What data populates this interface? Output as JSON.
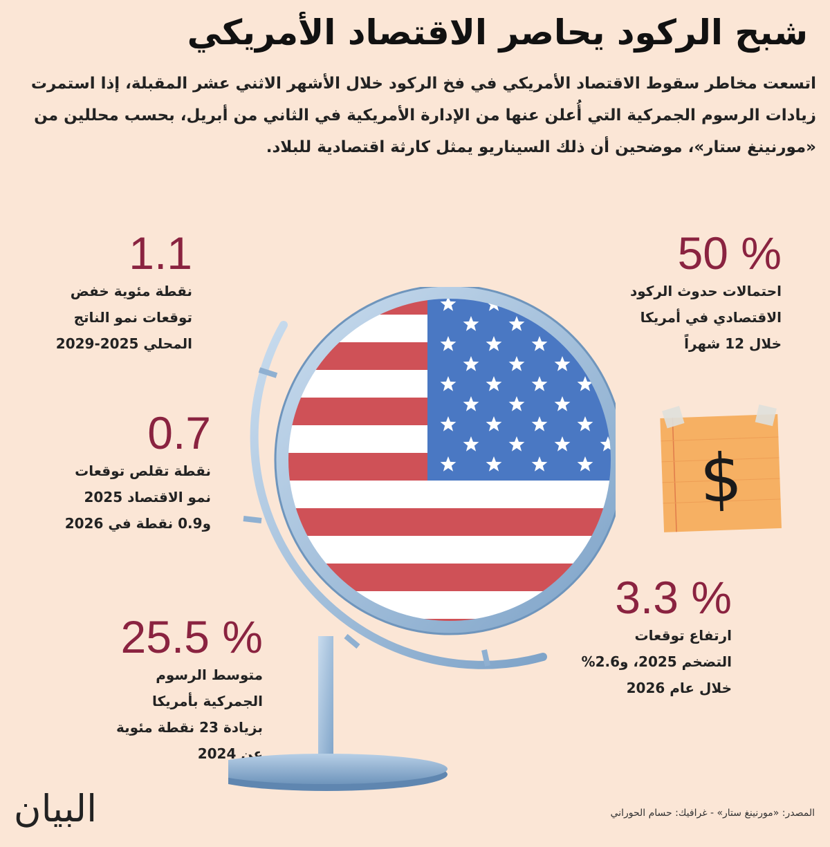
{
  "title": "شبح الركود يحاصر الاقتصاد الأمريكي",
  "intro": "اتسعت مخاطر سقوط الاقتصاد الأمريكي في فخ الركود خلال الأشهر الاثني عشر المقبلة، إذا استمرت زيادات الرسوم الجمركية التي أُعلن عنها من الإدارة الأمريكية في الثاني من أبريل، بحسب محللين من «مورنينغ ستار»، موضحين أن ذلك السيناريو يمثل كارثة اقتصادية للبلاد.",
  "stats": {
    "recession": {
      "value": "50 %",
      "desc": "احتمالات حدوث الركود\nالاقتصادي في أمريكا\nخلال 12 شهراً"
    },
    "gdp": {
      "value": "1.1",
      "desc": "نقطة مئوية خفض\nتوقعات نمو الناتج\nالمحلي 2025-2029"
    },
    "growth": {
      "value": "0.7",
      "desc": "نقطة تقلص توقعات\nنمو الاقتصاد 2025\nو0.9 نقطة في 2026"
    },
    "inflation": {
      "value": "3.3 %",
      "desc": "ارتفاع توقعات\nالتضخم 2025، و2.6%\nخلال عام 2026"
    },
    "tariff": {
      "value": "25.5 %",
      "desc": "متوسط الرسوم\nالجمركية بأمريكا\nبزيادة 23 نقطة مئوية\nعن 2024"
    }
  },
  "logo": "البيان",
  "source": "المصدر: «مورنينغ ستار» - غرافيك: حسام الحوراني",
  "colors": {
    "background": "#fbe6d6",
    "accent": "#8a2340",
    "flag_red": "#cf5157",
    "flag_blue": "#4a78c3",
    "frame": "#9dbbd9"
  },
  "icons": [
    "globe-icon",
    "dollar-note-icon"
  ]
}
